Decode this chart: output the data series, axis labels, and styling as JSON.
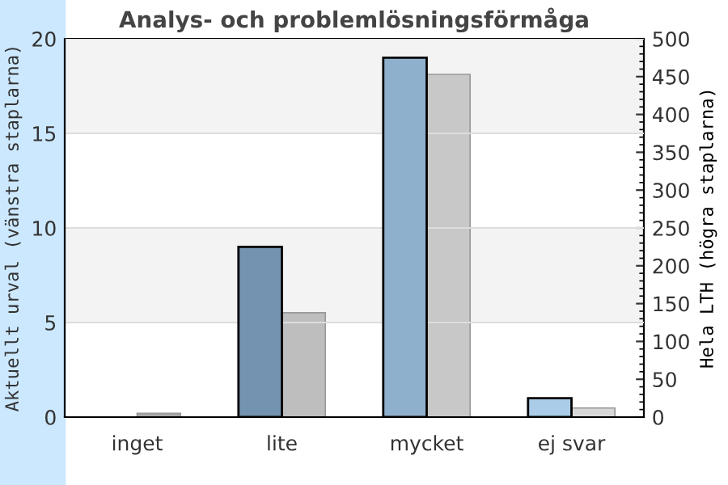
{
  "chart_data": {
    "type": "bar",
    "title": "Analys- och problemlösningsförmåga",
    "ylabel": "Aktuellt urval (vänstra staplarna)",
    "y2label": "Hela LTH (högra staplarna)",
    "categories": [
      "inget",
      "lite",
      "mycket",
      "ej svar"
    ],
    "series": [
      {
        "colors": [
          "#7393b0",
          "#7393b0",
          "#8fb0cc",
          "#aacce8"
        ],
        "values": [
          0,
          9,
          19,
          1
        ]
      },
      {
        "axis": "y2",
        "colors": [
          "#a8a8a8",
          "#bebebe",
          "#c8c8c8",
          "#d8d8d8"
        ],
        "values": [
          5,
          138,
          453,
          12
        ]
      }
    ],
    "ylim": [
      0,
      20
    ],
    "yticks": [
      0,
      5,
      10,
      15,
      20
    ],
    "y2lim": [
      0,
      500
    ],
    "y2ticks": [
      0,
      50,
      100,
      150,
      200,
      250,
      300,
      350,
      400,
      450,
      500
    ],
    "grid": "y",
    "legend": false
  }
}
